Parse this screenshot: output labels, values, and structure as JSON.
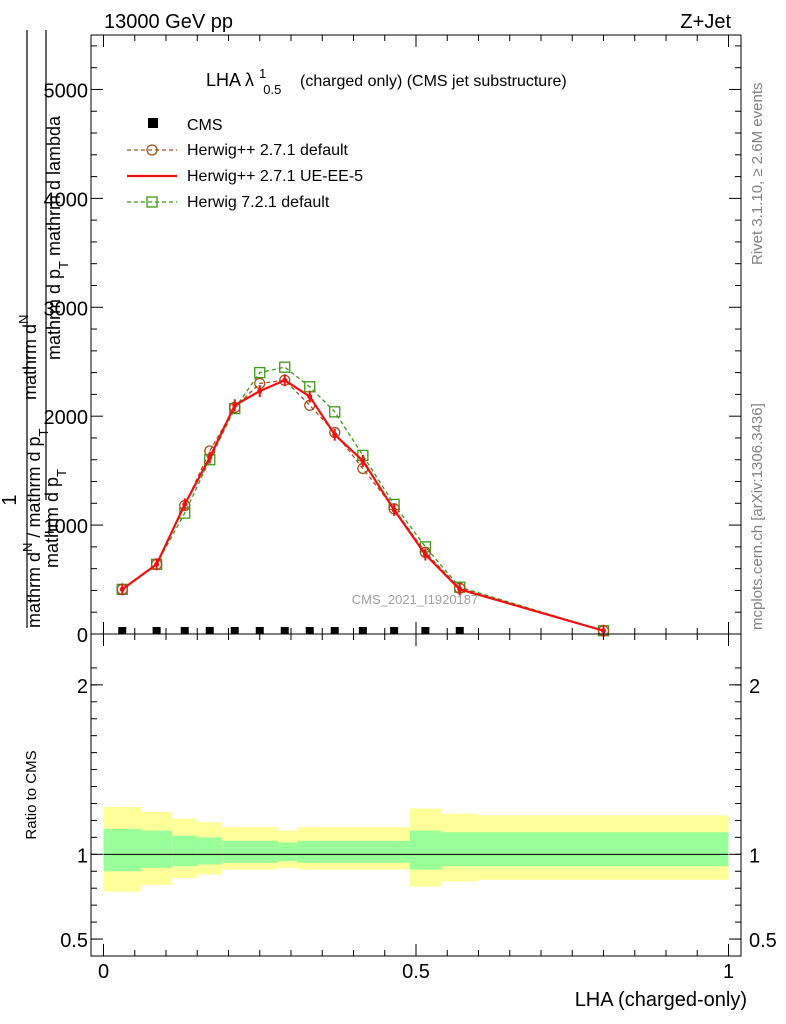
{
  "header": {
    "left": "13000 GeV pp",
    "right": "Z+Jet"
  },
  "side_text": {
    "rivet": "Rivet 3.1.10, ≥ 2.6M events",
    "mcplots": "mcplots.cern.ch [arXiv:1306.3436]"
  },
  "watermark": "CMS_2021_I1920187",
  "colors": {
    "cms": "#000000",
    "herwig_pp_default": "#a0521e",
    "herwig_pp_ueee5": "#ee1111",
    "herwig_721": "#3c9a14",
    "band_outer": "#ffff99",
    "band_inner": "#99ff99"
  },
  "chart_data": [
    {
      "type": "line",
      "title": "LHA λ",
      "title_sup": "1",
      "title_sub": "0.5",
      "title_rest": "(charged only) (CMS jet substructure)",
      "ylabel": {
        "one": "1",
        "inner_num": "mathrm d",
        "inner_num_N": "N",
        "inner_den": "mathrm d p",
        "inner_den_T": "T",
        "inner_den_lambda": "mathrm d lambda",
        "outer_den": "mathrm d",
        "outer_den_N": "N",
        "outer_den_rest": "/ mathrm d p",
        "outer_den_T": "T"
      },
      "xlim": [
        -0.02,
        1.02
      ],
      "ylim": [
        0,
        5500
      ],
      "yticks": [
        0,
        1000,
        2000,
        3000,
        4000,
        5000
      ],
      "ytick_labels": [
        "0",
        "1000",
        "2000",
        "3000",
        "4000",
        "5000"
      ],
      "legend_position": "top-left",
      "legend": [
        "CMS",
        "Herwig++ 2.7.1 default",
        "Herwig++ 2.7.1 UE-EE-5",
        "Herwig 7.2.1 default"
      ],
      "x": [
        0.03,
        0.085,
        0.13,
        0.17,
        0.21,
        0.25,
        0.29,
        0.33,
        0.37,
        0.415,
        0.465,
        0.515,
        0.57,
        0.8
      ],
      "series": [
        {
          "name": "CMS",
          "marker": "square-filled",
          "values": [
            0,
            0,
            0,
            0,
            0,
            0,
            0,
            0,
            0,
            0,
            0,
            0,
            0,
            null
          ]
        },
        {
          "name": "Herwig++ 2.7.1 default",
          "marker": "circle-open",
          "style": "dashed",
          "values": [
            410,
            640,
            1180,
            1680,
            2080,
            2300,
            2330,
            2100,
            1850,
            1520,
            1150,
            750,
            420,
            30
          ]
        },
        {
          "name": "Herwig++ 2.7.1 UE-EE-5",
          "marker": "none",
          "style": "solid",
          "values": [
            410,
            640,
            1190,
            1620,
            2100,
            2230,
            2330,
            2180,
            1830,
            1590,
            1140,
            730,
            410,
            30
          ]
        },
        {
          "name": "Herwig 7.2.1 default",
          "marker": "square-open",
          "style": "dashed",
          "values": [
            410,
            640,
            1110,
            1600,
            2070,
            2400,
            2450,
            2270,
            2040,
            1640,
            1190,
            800,
            430,
            30
          ]
        }
      ]
    },
    {
      "type": "area",
      "ylabel": "Ratio to CMS",
      "xlabel": "LHA (charged-only)",
      "xlim": [
        -0.02,
        1.02
      ],
      "ylim": [
        0.4,
        2.3
      ],
      "yticks": [
        0.5,
        1,
        2
      ],
      "ytick_labels": [
        "0.5",
        "1",
        "2"
      ],
      "xticks": [
        0,
        0.5,
        1
      ],
      "xtick_labels": [
        "0",
        "0.5",
        "1"
      ],
      "bins": [
        0.0,
        0.06,
        0.11,
        0.15,
        0.19,
        0.28,
        0.31,
        0.49,
        0.54,
        0.6,
        1.0
      ],
      "outer_low": [
        0.78,
        0.82,
        0.86,
        0.88,
        0.91,
        0.92,
        0.91,
        0.81,
        0.84,
        0.85
      ],
      "outer_high": [
        1.28,
        1.25,
        1.21,
        1.19,
        1.16,
        1.14,
        1.16,
        1.27,
        1.24,
        1.23
      ],
      "inner_low": [
        0.9,
        0.92,
        0.93,
        0.94,
        0.95,
        0.96,
        0.95,
        0.91,
        0.93,
        0.93
      ],
      "inner_high": [
        1.15,
        1.14,
        1.11,
        1.1,
        1.08,
        1.07,
        1.08,
        1.14,
        1.13,
        1.13
      ],
      "reference": 1
    }
  ]
}
